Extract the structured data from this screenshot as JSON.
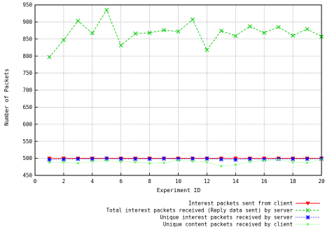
{
  "chart_data": {
    "type": "line",
    "title": "",
    "xlabel": "Experiment ID",
    "ylabel": "Number of Packets",
    "xlim": [
      0,
      20
    ],
    "ylim": [
      450,
      950
    ],
    "xticks": [
      0,
      2,
      4,
      6,
      8,
      10,
      12,
      14,
      16,
      18,
      20
    ],
    "yticks": [
      450,
      500,
      550,
      600,
      650,
      700,
      750,
      800,
      850,
      900,
      950
    ],
    "grid": true,
    "legend_position": "bottom-right",
    "x": [
      1,
      2,
      3,
      4,
      5,
      6,
      7,
      8,
      9,
      10,
      11,
      12,
      13,
      14,
      15,
      16,
      17,
      18,
      19,
      20
    ],
    "series": [
      {
        "name": "Interest packets sent from client",
        "color": "#ff0000",
        "marker": "triangle-down",
        "dash": "solid",
        "values": [
          500,
          500,
          500,
          500,
          500,
          500,
          500,
          500,
          500,
          500,
          500,
          500,
          500,
          500,
          500,
          500,
          500,
          500,
          500,
          500
        ]
      },
      {
        "name": "Total interest packets received (Reply data sent) by server",
        "color": "#00cc00",
        "marker": "x",
        "dash": "dashed",
        "values": [
          797,
          847,
          903,
          867,
          935,
          831,
          866,
          868,
          876,
          872,
          907,
          818,
          874,
          859,
          887,
          868,
          885,
          860,
          879,
          857
        ]
      },
      {
        "name": "Unique interest packets received by server",
        "color": "#0000ff",
        "marker": "star",
        "dash": "dotted",
        "values": [
          496,
          497,
          498,
          498,
          499,
          498,
          498,
          498,
          499,
          498,
          499,
          499,
          497,
          496,
          498,
          497,
          498,
          498,
          498,
          499
        ]
      },
      {
        "name": "Unique content packets received by client",
        "color": "#66ff66",
        "marker": "square",
        "dash": "dotted",
        "values": [
          488,
          489,
          486,
          491,
          493,
          490,
          489,
          486,
          487,
          494,
          491,
          489,
          477,
          481,
          490,
          493,
          496,
          489,
          487,
          497
        ]
      }
    ]
  }
}
